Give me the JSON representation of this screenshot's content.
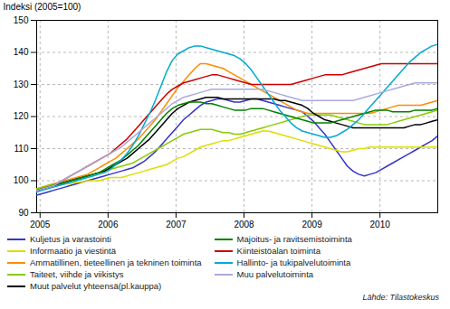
{
  "chart_data": {
    "type": "line",
    "ylabel": "Indeksi (2005=100)",
    "caption": "Lähde: Tilastokeskus",
    "xlim": [
      2004.95,
      2010.85
    ],
    "xticks": [
      2005,
      2006,
      2007,
      2008,
      2009,
      2010
    ],
    "ylim": [
      90,
      150
    ],
    "yticks": [
      90,
      100,
      110,
      120,
      130,
      140,
      150
    ],
    "grid": true,
    "legend": "bottom",
    "x": [
      2004.95,
      2005.0331,
      2005.1162,
      2005.1993,
      2005.2824,
      2005.3655,
      2005.4486,
      2005.5317,
      2005.6148,
      2005.6979,
      2005.781,
      2005.8641,
      2005.9472,
      2006.0303,
      2006.1134,
      2006.1965,
      2006.2796,
      2006.3627,
      2006.4458,
      2006.5289,
      2006.612,
      2006.6951,
      2006.7782,
      2006.8613,
      2006.9444,
      2007.0275,
      2007.1106,
      2007.1937,
      2007.2768,
      2007.3599,
      2007.443,
      2007.5261,
      2007.6092,
      2007.6923,
      2007.7754,
      2007.8585,
      2007.9415,
      2008.0246,
      2008.1077,
      2008.1908,
      2008.2739,
      2008.357,
      2008.4401,
      2008.5232,
      2008.6063,
      2008.6894,
      2008.7725,
      2008.8556,
      2008.9387,
      2009.0218,
      2009.1049,
      2009.188,
      2009.2711,
      2009.3542,
      2009.4373,
      2009.5204,
      2009.6035,
      2009.6866,
      2009.7697,
      2009.8528,
      2009.9359,
      2010.019,
      2010.1021,
      2010.1852,
      2010.2683,
      2010.3514,
      2010.4345,
      2010.5176,
      2010.6007,
      2010.6838,
      2010.7669,
      2010.85
    ],
    "series": [
      {
        "name": "Kuljetus ja varastointi",
        "color": "#3333CC",
        "values": [
          95.5,
          96.0,
          96.5,
          97.0,
          97.5,
          98.0,
          98.5,
          99.0,
          99.5,
          100.0,
          100.5,
          101.0,
          101.5,
          102.0,
          102.5,
          103.0,
          103.5,
          104.0,
          105.0,
          106.0,
          107.5,
          109.0,
          111.0,
          113.0,
          115.0,
          117.0,
          119.0,
          120.5,
          122.0,
          123.5,
          124.5,
          125.0,
          125.5,
          125.5,
          125.0,
          124.5,
          124.5,
          125.0,
          125.5,
          125.5,
          125.0,
          124.5,
          124.0,
          123.5,
          123.0,
          122.5,
          122.0,
          121.5,
          120.0,
          118.5,
          116.5,
          114.5,
          112.0,
          109.5,
          107.0,
          104.5,
          103.0,
          102.0,
          101.5,
          102.0,
          102.5,
          103.5,
          104.5,
          105.5,
          106.5,
          107.5,
          108.5,
          109.5,
          110.5,
          111.5,
          112.5,
          114.0
        ]
      },
      {
        "name": "Informaatio ja viestintä",
        "color": "#DDDD00",
        "values": [
          97.5,
          98.0,
          98.0,
          98.5,
          98.5,
          99.0,
          99.0,
          99.5,
          99.5,
          100.0,
          100.0,
          100.0,
          100.5,
          101.0,
          101.0,
          101.0,
          101.5,
          102.0,
          102.5,
          103.0,
          103.5,
          104.0,
          104.5,
          105.0,
          106.0,
          107.0,
          107.5,
          108.5,
          109.5,
          110.5,
          111.0,
          111.5,
          112.0,
          112.5,
          112.5,
          113.0,
          113.5,
          114.0,
          114.5,
          115.0,
          115.5,
          115.5,
          115.0,
          114.5,
          114.0,
          113.5,
          113.0,
          112.5,
          112.0,
          111.5,
          111.0,
          110.5,
          110.0,
          109.5,
          109.0,
          109.0,
          109.5,
          110.0,
          110.0,
          110.5,
          110.5,
          110.5,
          110.5,
          110.5,
          110.5,
          110.5,
          110.5,
          110.5,
          110.5,
          110.5,
          110.5,
          110.5
        ]
      },
      {
        "name": "Ammatillinen, tieteellinen ja tekninen toiminta",
        "color": "#FF8C00",
        "values": [
          97.5,
          98.0,
          98.5,
          99.0,
          99.5,
          100.0,
          100.5,
          101.0,
          101.5,
          102.0,
          103.0,
          104.0,
          105.0,
          106.0,
          107.0,
          108.5,
          110.0,
          111.5,
          113.0,
          115.0,
          117.0,
          119.0,
          121.5,
          124.0,
          126.5,
          129.0,
          131.0,
          133.0,
          135.0,
          136.5,
          136.5,
          136.0,
          135.5,
          135.0,
          134.0,
          133.0,
          132.0,
          131.0,
          130.0,
          129.0,
          128.0,
          127.0,
          126.0,
          125.0,
          124.0,
          123.0,
          122.0,
          121.5,
          121.0,
          121.0,
          121.0,
          121.0,
          121.0,
          121.0,
          121.0,
          121.0,
          121.0,
          121.0,
          121.0,
          121.0,
          121.5,
          122.0,
          122.5,
          123.0,
          123.5,
          123.5,
          123.5,
          123.5,
          123.5,
          124.0,
          124.5,
          125.0
        ]
      },
      {
        "name": "Taiteet, viihde ja viikistys",
        "color": "#88CC00",
        "values": [
          97.5,
          98.0,
          98.5,
          99.0,
          99.0,
          99.5,
          100.0,
          100.5,
          101.0,
          101.5,
          102.0,
          102.5,
          103.0,
          103.5,
          104.0,
          104.5,
          105.0,
          105.5,
          106.5,
          107.5,
          108.5,
          109.5,
          110.5,
          111.5,
          112.5,
          113.5,
          114.5,
          115.0,
          115.5,
          116.0,
          116.0,
          116.0,
          115.5,
          115.0,
          115.0,
          114.5,
          114.5,
          115.0,
          115.5,
          116.0,
          116.5,
          117.0,
          117.5,
          118.0,
          118.5,
          119.0,
          119.5,
          120.0,
          120.5,
          120.5,
          120.5,
          120.5,
          120.5,
          120.0,
          119.5,
          119.0,
          118.5,
          118.0,
          117.5,
          117.5,
          117.5,
          117.5,
          117.5,
          118.0,
          118.5,
          119.0,
          119.5,
          120.0,
          120.5,
          121.0,
          121.5,
          122.0
        ]
      },
      {
        "name": "Muut palvelut yhteensä(pl.kauppa)",
        "color": "#000000",
        "values": [
          97.0,
          97.5,
          98.0,
          98.5,
          99.0,
          99.5,
          100.0,
          100.5,
          101.0,
          101.5,
          102.0,
          102.5,
          103.0,
          104.0,
          105.0,
          106.0,
          107.0,
          108.5,
          110.0,
          111.5,
          113.0,
          115.0,
          117.0,
          119.0,
          121.0,
          122.5,
          123.5,
          124.5,
          125.0,
          125.5,
          126.0,
          126.0,
          126.0,
          125.5,
          125.5,
          125.5,
          125.5,
          125.5,
          125.5,
          125.5,
          125.5,
          125.5,
          125.5,
          125.0,
          125.0,
          124.5,
          124.0,
          123.5,
          122.5,
          121.0,
          120.0,
          119.0,
          118.5,
          118.0,
          117.5,
          117.0,
          116.5,
          116.5,
          116.5,
          116.5,
          116.5,
          116.5,
          116.5,
          116.5,
          116.5,
          116.5,
          117.0,
          117.5,
          117.5,
          118.0,
          118.5,
          119.0
        ]
      },
      {
        "name": "Majoitus- ja ravitsemistoiminta",
        "color": "#008000",
        "values": [
          97.0,
          97.5,
          98.0,
          98.5,
          99.0,
          99.5,
          100.0,
          100.5,
          101.0,
          101.5,
          102.0,
          102.5,
          103.5,
          104.5,
          105.5,
          106.5,
          108.0,
          109.5,
          111.0,
          113.0,
          115.0,
          117.0,
          119.0,
          121.0,
          122.5,
          123.5,
          124.0,
          124.5,
          124.5,
          124.5,
          124.0,
          124.0,
          123.5,
          123.0,
          122.5,
          122.0,
          122.0,
          122.0,
          122.5,
          122.5,
          122.5,
          122.0,
          121.5,
          121.0,
          120.5,
          120.0,
          119.5,
          119.0,
          118.5,
          118.0,
          118.0,
          118.0,
          118.0,
          118.5,
          119.0,
          119.5,
          120.0,
          120.5,
          121.0,
          121.5,
          122.0,
          122.0,
          122.0,
          121.5,
          121.5,
          121.5,
          121.5,
          122.0,
          122.0,
          122.0,
          122.0,
          122.5
        ]
      },
      {
        "name": "Kiinteistöalan toiminta",
        "color": "#CC0000",
        "values": [
          97.0,
          97.5,
          98.0,
          98.5,
          99.5,
          100.5,
          101.5,
          102.5,
          103.5,
          104.5,
          105.5,
          106.5,
          107.5,
          108.5,
          110.0,
          111.5,
          113.0,
          115.0,
          117.0,
          119.0,
          121.0,
          123.0,
          125.0,
          127.0,
          128.5,
          129.5,
          130.5,
          131.0,
          131.5,
          132.0,
          132.5,
          133.0,
          133.0,
          132.5,
          132.0,
          131.5,
          131.0,
          130.5,
          130.0,
          130.0,
          130.0,
          130.0,
          130.0,
          130.0,
          130.0,
          130.0,
          130.5,
          131.0,
          131.5,
          132.0,
          132.5,
          133.0,
          133.0,
          133.0,
          133.0,
          133.5,
          134.0,
          134.5,
          135.0,
          135.5,
          136.0,
          136.5,
          136.5,
          136.5,
          136.5,
          136.5,
          136.5,
          136.5,
          136.5,
          136.5,
          136.5,
          136.5
        ]
      },
      {
        "name": "Hallinto- ja tukipalvelutoiminta",
        "color": "#00AACC",
        "values": [
          96.5,
          97.0,
          97.5,
          98.0,
          98.5,
          99.0,
          99.5,
          100.0,
          100.5,
          101.0,
          101.5,
          102.0,
          102.5,
          103.5,
          105.0,
          106.5,
          108.5,
          111.0,
          114.0,
          117.5,
          121.0,
          125.0,
          129.5,
          134.0,
          137.5,
          139.5,
          140.5,
          141.5,
          142.0,
          142.0,
          141.5,
          141.0,
          140.5,
          140.0,
          139.5,
          139.0,
          138.0,
          136.5,
          134.5,
          132.0,
          129.5,
          127.0,
          124.5,
          122.0,
          120.0,
          118.0,
          116.5,
          115.5,
          115.0,
          114.5,
          114.0,
          113.5,
          113.5,
          114.0,
          115.0,
          116.0,
          117.5,
          119.0,
          121.0,
          123.0,
          125.0,
          127.0,
          129.0,
          131.0,
          133.0,
          135.0,
          137.0,
          138.5,
          140.0,
          141.0,
          142.0,
          142.5
        ]
      },
      {
        "name": "Muu palvelutoiminta",
        "color": "#AAAADD",
        "values": [
          97.0,
          97.5,
          98.0,
          98.5,
          99.5,
          100.5,
          101.5,
          102.5,
          103.5,
          104.5,
          105.5,
          106.5,
          107.5,
          108.5,
          109.5,
          110.5,
          112.0,
          113.5,
          115.0,
          116.5,
          118.0,
          119.5,
          121.0,
          122.5,
          124.0,
          125.0,
          126.0,
          126.5,
          127.0,
          127.5,
          128.0,
          128.5,
          128.5,
          128.5,
          128.5,
          128.5,
          128.5,
          128.5,
          128.5,
          128.5,
          128.5,
          128.0,
          127.5,
          127.0,
          126.5,
          126.0,
          125.5,
          125.0,
          125.0,
          125.0,
          125.0,
          125.0,
          125.0,
          125.0,
          125.0,
          125.0,
          125.0,
          125.5,
          126.0,
          126.5,
          127.0,
          127.5,
          128.0,
          128.5,
          129.0,
          129.5,
          130.0,
          130.5,
          130.5,
          130.5,
          130.5,
          130.5
        ]
      }
    ]
  }
}
